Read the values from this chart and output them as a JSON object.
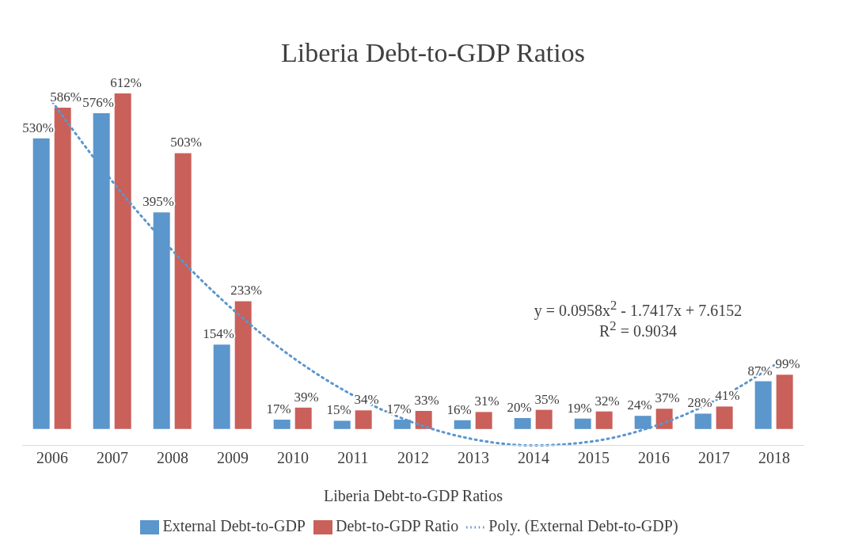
{
  "chart_data": {
    "type": "bar",
    "title": "Liberia Debt-to-GDP Ratios",
    "xlabel": "Liberia Debt-to-GDP Ratios",
    "categories": [
      "2006",
      "2007",
      "2008",
      "2009",
      "2010",
      "2011",
      "2012",
      "2013",
      "2014",
      "2015",
      "2016",
      "2017",
      "2018"
    ],
    "series": [
      {
        "name": "External Debt-to-GDP",
        "color": "#5b96cc",
        "values": [
          530,
          576,
          395,
          154,
          17,
          15,
          17,
          16,
          20,
          19,
          24,
          28,
          87
        ],
        "value_labels": [
          "530%",
          "576%",
          "395%",
          "154%",
          "17%",
          "15%",
          "17%",
          "16%",
          "20%",
          "19%",
          "24%",
          "28%",
          "87%"
        ]
      },
      {
        "name": "Debt-to-GDP Ratio",
        "color": "#c9605a",
        "values": [
          586,
          612,
          503,
          233,
          39,
          34,
          33,
          31,
          35,
          32,
          37,
          41,
          99
        ],
        "value_labels": [
          "586%",
          "612%",
          "503%",
          "233%",
          "39%",
          "34%",
          "33%",
          "31%",
          "35%",
          "32%",
          "37%",
          "41%",
          "99%"
        ]
      },
      {
        "name": "Poly. (External Debt-to-GDP)",
        "type": "line",
        "line_style": "dotted",
        "color": "#5b96cc",
        "values": [
          596.9,
          451.5,
          325.2,
          218.1,
          130.2,
          61.4,
          11.8,
          -18.7,
          -30.0,
          -22.2,
          4.8,
          51.0,
          116.3
        ]
      }
    ],
    "annotations": [
      "y = 0.0958x$^{2}$ - 1.7417x + 7.6152",
      "R$^{2}$ = 0.9034"
    ],
    "legend": "bottom"
  }
}
